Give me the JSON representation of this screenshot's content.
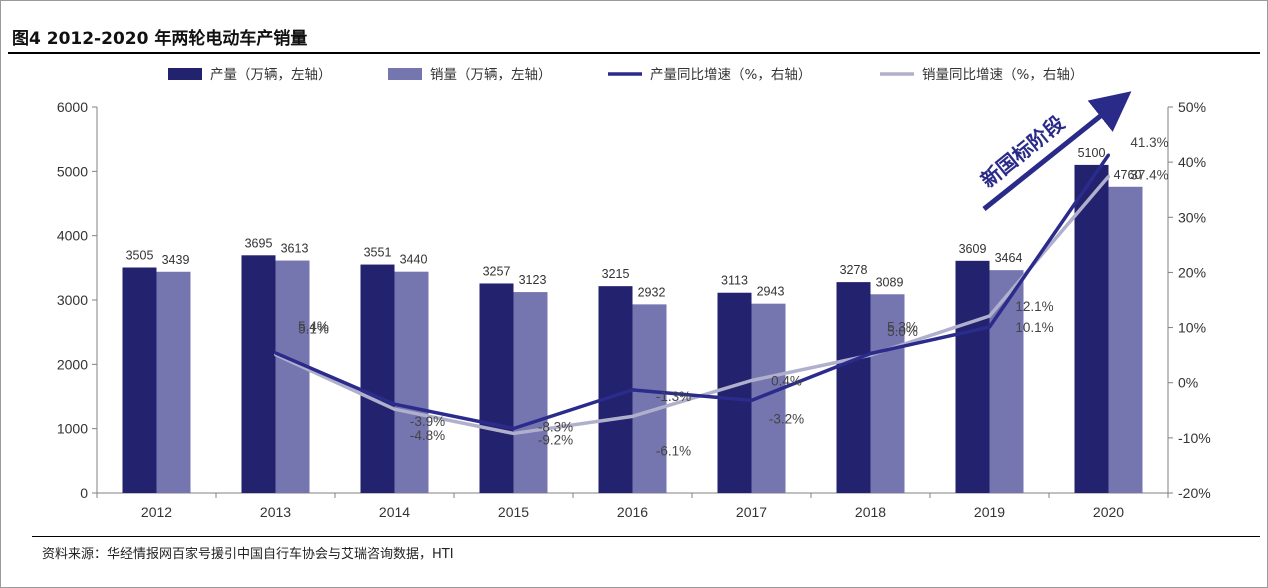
{
  "title": "图4  2012-2020 年两轮电动车产销量",
  "source": "资料来源：华经情报网百家号援引中国自行车协会与艾瑞咨询数据，HTI",
  "annotation": "新国标阶段",
  "colors": {
    "production_bar": "#22226e",
    "sales_bar": "#7575b0",
    "production_line": "#2b2b8c",
    "sales_line": "#b0b0cc",
    "arrow": "#2a2a88"
  },
  "chart_data": {
    "type": "bar",
    "categories": [
      "2012",
      "2013",
      "2014",
      "2015",
      "2016",
      "2017",
      "2018",
      "2019",
      "2020"
    ],
    "series": [
      {
        "name": "产量（万辆，左轴）",
        "kind": "bar",
        "axis": "left",
        "values": [
          3505,
          3695,
          3551,
          3257,
          3215,
          3113,
          3278,
          3609,
          5100
        ],
        "labels": [
          "3505",
          "3695",
          "3551",
          "3257",
          "3215",
          "3113",
          "3278",
          "3609",
          "5100"
        ]
      },
      {
        "name": "销量（万辆，左轴）",
        "kind": "bar",
        "axis": "left",
        "values": [
          3439,
          3613,
          3440,
          3123,
          2932,
          2943,
          3089,
          3464,
          4760
        ],
        "labels": [
          "3439",
          "3613",
          "3440",
          "3123",
          "2932",
          "2943",
          "3089",
          "3464",
          "4760"
        ]
      },
      {
        "name": "产量同比增速（%，右轴）",
        "kind": "line",
        "axis": "right",
        "values": [
          null,
          5.4,
          -3.9,
          -8.3,
          -1.3,
          -3.2,
          5.3,
          10.1,
          41.3
        ],
        "labels": [
          "",
          "5.4%",
          "-3.9%",
          "-8.3%",
          "-1.3%",
          "-3.2%",
          "5.3%",
          "10.1%",
          "41.3%"
        ]
      },
      {
        "name": "销量同比增速（%，右轴）",
        "kind": "line",
        "axis": "right",
        "values": [
          null,
          5.1,
          -4.8,
          -9.2,
          -6.1,
          0.4,
          5.0,
          12.1,
          37.4
        ],
        "labels": [
          "",
          "5.1%",
          "-4.8%",
          "-9.2%",
          "-6.1%",
          "0.4%",
          "5.0%",
          "12.1%",
          "37.4%"
        ]
      }
    ],
    "y_left": {
      "ylim": [
        0,
        6000
      ],
      "ticks": [
        0,
        1000,
        2000,
        3000,
        4000,
        5000,
        6000
      ],
      "tick_labels": [
        "0",
        "1000",
        "2000",
        "3000",
        "4000",
        "5000",
        "6000"
      ]
    },
    "y_right": {
      "ylim": [
        -20,
        50
      ],
      "ticks": [
        -20,
        -10,
        0,
        10,
        20,
        30,
        40,
        50
      ],
      "tick_labels": [
        "-20%",
        "-10%",
        "0%",
        "10%",
        "20%",
        "30%",
        "40%",
        "50%"
      ]
    },
    "legend_position": "top",
    "grid": false
  }
}
